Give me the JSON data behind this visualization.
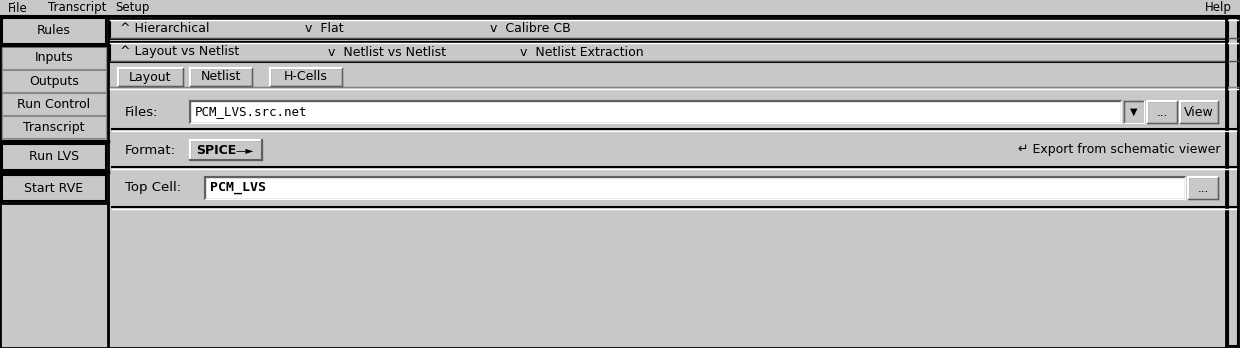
{
  "bg_color": "#c8c8c8",
  "white": "#ffffff",
  "black": "#000000",
  "fig_width": 12.4,
  "fig_height": 3.48,
  "menu_items": [
    "File",
    "Transcript",
    "Setup"
  ],
  "menu_help": "Help",
  "left_buttons": [
    "Rules",
    "Inputs",
    "Outputs",
    "Run Control",
    "Transcript"
  ],
  "left_buttons2": [
    "Run LVS",
    "Start RVE"
  ],
  "row1_label": "^ Hierarchical",
  "row1_item2": "v  Flat",
  "row1_item3": "v  Calibre CB",
  "row2_label": "^ Layout vs Netlist",
  "row2_item2": "v  Netlist vs Netlist",
  "row2_item3": "v  Netlist Extraction",
  "tabs": [
    "Layout",
    "Netlist",
    "H-Cells"
  ],
  "files_label": "Files:",
  "files_value": "PCM_LVS.src.net",
  "format_label": "Format:",
  "format_value": "SPICE",
  "format_arrow": "—►",
  "export_text": "↵ Export from schematic viewer",
  "topcell_label": "Top Cell:",
  "topcell_value": "PCM_LVS",
  "view_btn": "View",
  "dots_btn": "..."
}
